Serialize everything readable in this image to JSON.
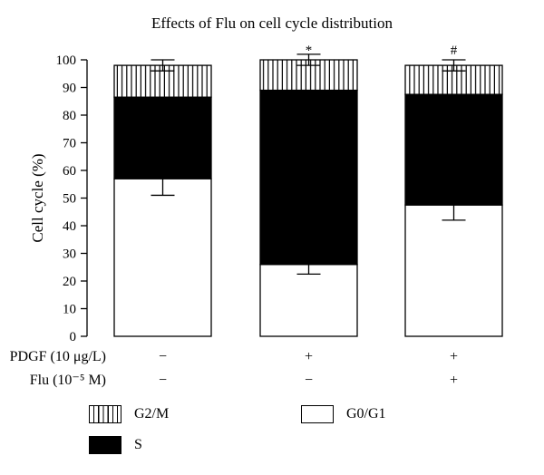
{
  "title": "Effects of Flu on cell cycle distribution",
  "chart_data": {
    "type": "bar",
    "stacked": true,
    "title": "Effects of Flu on cell cycle distribution",
    "ylabel": "Cell cycle (%)",
    "ylim": [
      0,
      100
    ],
    "yticks": [
      0,
      10,
      20,
      30,
      40,
      50,
      60,
      70,
      80,
      90,
      100
    ],
    "grid": false,
    "legend_position": "bottom",
    "treatments": [
      {
        "label": "PDGF (10 μg/L)",
        "values": [
          "−",
          "+",
          "+"
        ]
      },
      {
        "label": "Flu (10⁻⁵ M)",
        "values": [
          "−",
          "−",
          "+"
        ]
      }
    ],
    "categories": [
      "PDGF −, Flu −",
      "PDGF +, Flu −",
      "PDGF +, Flu +"
    ],
    "series": [
      {
        "name": "G0/G1",
        "fill": "white",
        "values": [
          57,
          26,
          47.5
        ],
        "error": [
          6,
          3.5,
          5.5
        ]
      },
      {
        "name": "S",
        "fill": "black",
        "values": [
          29.5,
          63,
          40
        ]
      },
      {
        "name": "G2/M",
        "fill": "vertical-hatch",
        "values": [
          11.5,
          11,
          10.5
        ],
        "error": [
          2,
          2,
          2
        ]
      }
    ],
    "annotations": [
      "",
      "*",
      "#"
    ]
  },
  "legend": {
    "g2m": "G2/M",
    "g0g1": "G0/G1",
    "s": "S"
  }
}
